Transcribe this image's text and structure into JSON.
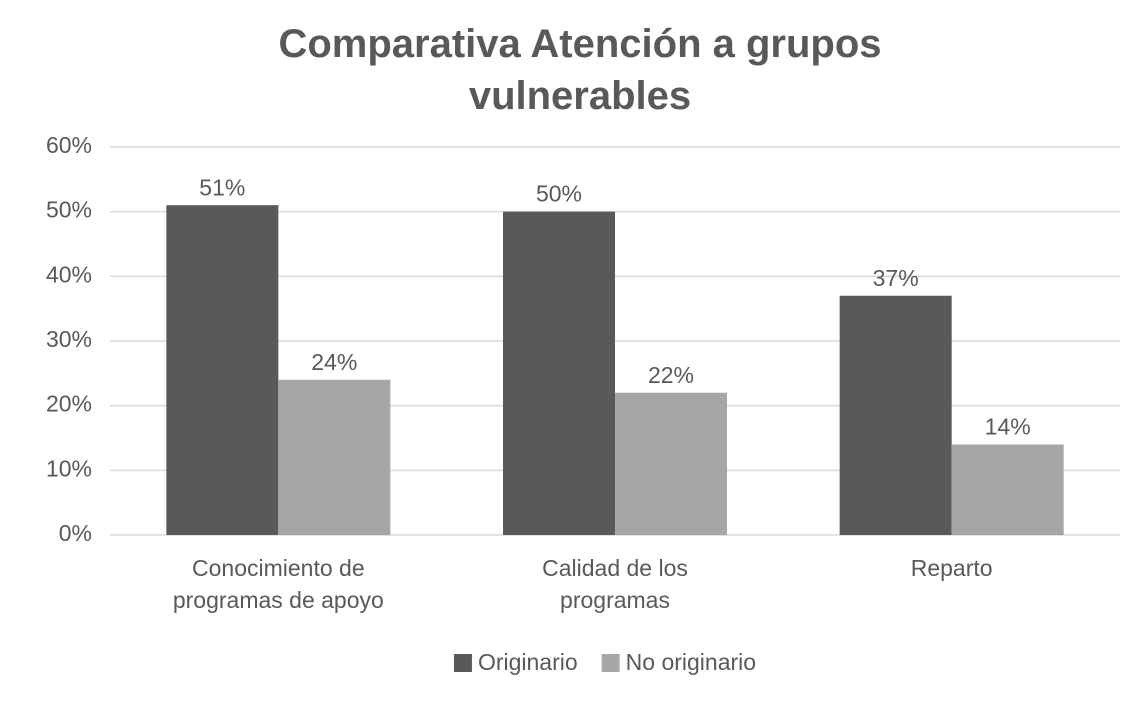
{
  "chart_data": {
    "type": "bar",
    "title": "Comparativa Atención a grupos vulnerables",
    "categories": [
      "Conocimiento de programas de apoyo",
      "Calidad de los programas",
      "Reparto"
    ],
    "series": [
      {
        "name": "Originario",
        "color": "#595959",
        "values": [
          51,
          50,
          37
        ],
        "value_labels": [
          "51%",
          "50%",
          "37%"
        ]
      },
      {
        "name": "No originario",
        "color": "#a6a6a6",
        "values": [
          24,
          22,
          14
        ],
        "value_labels": [
          "24%",
          "22%",
          "14%"
        ]
      }
    ],
    "ylim": [
      0,
      60
    ],
    "yticks": [
      {
        "value": 0,
        "label": "0%"
      },
      {
        "value": 10,
        "label": "10%"
      },
      {
        "value": 20,
        "label": "20%"
      },
      {
        "value": 30,
        "label": "30%"
      },
      {
        "value": 40,
        "label": "40%"
      },
      {
        "value": 50,
        "label": "50%"
      },
      {
        "value": 60,
        "label": "60%"
      }
    ],
    "grid": true,
    "legend": "bottom"
  }
}
